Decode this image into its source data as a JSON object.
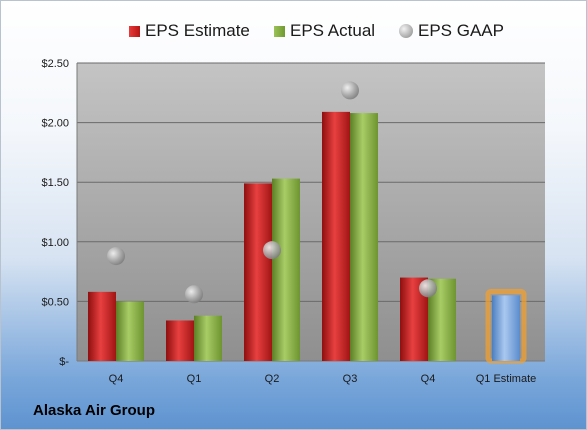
{
  "chart_data": {
    "type": "bar",
    "categories": [
      "Q4",
      "Q1",
      "Q2",
      "Q3",
      "Q4",
      "Q1 Estimate"
    ],
    "series": [
      {
        "name": "EPS Estimate",
        "values": [
          0.58,
          0.34,
          1.49,
          2.09,
          0.7,
          null
        ],
        "color": "#c81e1e"
      },
      {
        "name": "EPS Actual",
        "values": [
          0.5,
          0.38,
          1.53,
          2.08,
          0.69,
          null
        ],
        "color": "#86ad43"
      },
      {
        "name": "EPS GAAP",
        "values": [
          0.88,
          0.56,
          0.93,
          2.27,
          0.61,
          null
        ],
        "color": "#b0b0b0"
      }
    ],
    "forecast": {
      "category": "Q1 Estimate",
      "value": 0.55,
      "color": "#6fa0dc",
      "highlight": "#f0a030"
    },
    "y_tick_labels": [
      "$-",
      "$0.50",
      "$1.00",
      "$1.50",
      "$2.00",
      "$2.50"
    ],
    "y_ticks": [
      0,
      0.5,
      1.0,
      1.5,
      2.0,
      2.5
    ],
    "ylim": [
      0,
      2.5
    ],
    "grid": true,
    "legend_position": "top-center",
    "company": "Alaska Air Group"
  }
}
